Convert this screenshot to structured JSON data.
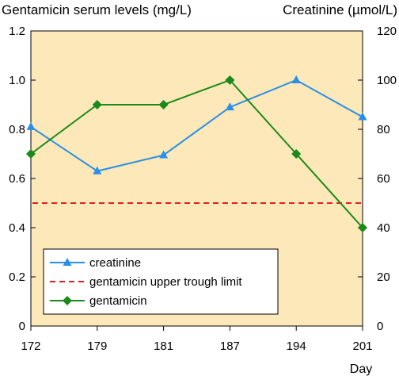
{
  "chart_data": {
    "type": "line",
    "left_axis_title": "Gentamicin serum levels (mg/L)",
    "right_axis_title": "Creatinine (µmol/L)",
    "xlabel": "Day",
    "categories": [
      "172",
      "179",
      "181",
      "187",
      "194",
      "201"
    ],
    "y_left": {
      "min": 0,
      "max": 1.2,
      "ticks": [
        "0",
        "0.2",
        "0.4",
        "0.6",
        "0.8",
        "1.0",
        "1.2"
      ]
    },
    "y_right": {
      "min": 0,
      "max": 120,
      "ticks": [
        "0",
        "20",
        "40",
        "60",
        "80",
        "100",
        "120"
      ]
    },
    "background_color": "#fce8b8",
    "legend_position": "bottom-left",
    "series": [
      {
        "name": "creatinine",
        "axis": "right",
        "values": [
          81,
          63,
          69.5,
          89,
          100,
          85
        ],
        "color": "#2a8fe6",
        "marker": "triangle"
      },
      {
        "name": "gentamicin upper trough limit",
        "axis": "left",
        "constant": 0.5,
        "color": "#e02020",
        "style": "dashed"
      },
      {
        "name": "gentamicin",
        "axis": "left",
        "values": [
          0.7,
          0.9,
          0.9,
          1.0,
          0.7,
          0.4
        ],
        "color": "#1b8a1b",
        "marker": "diamond"
      }
    ]
  }
}
